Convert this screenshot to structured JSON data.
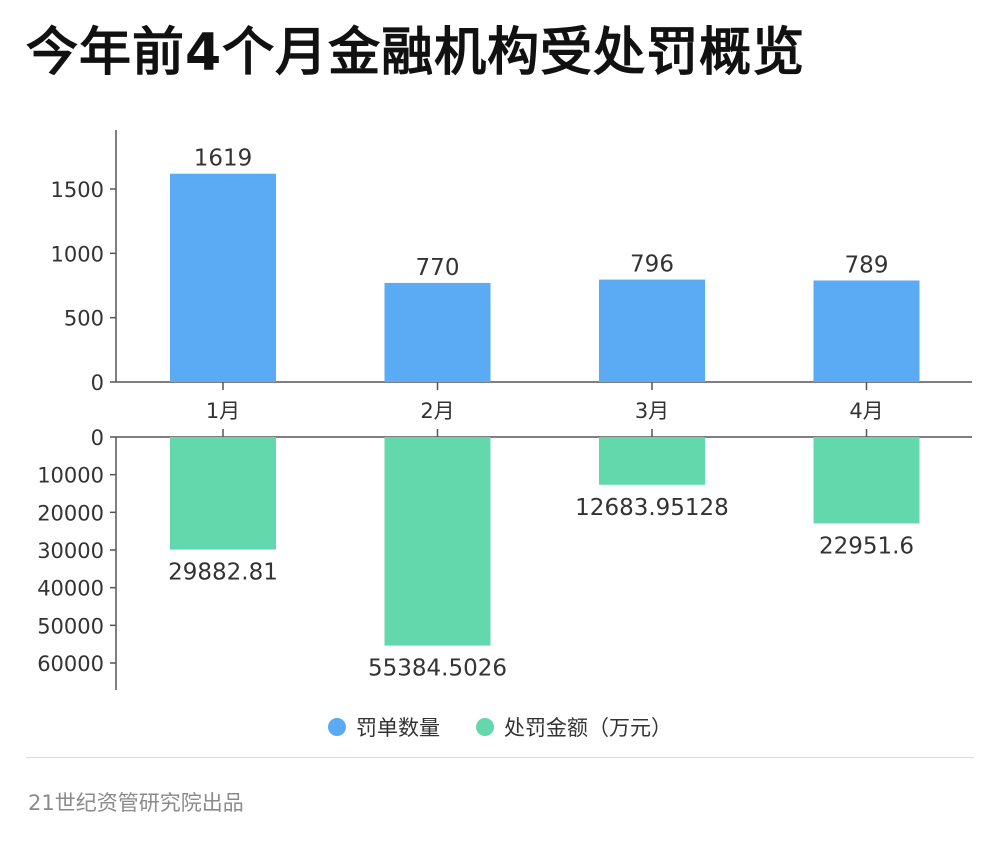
{
  "title": "今年前4个月金融机构受处罚概览",
  "footer": "21世纪资管研究院出品",
  "legend": [
    {
      "label": "罚单数量",
      "color": "#5aabf4"
    },
    {
      "label": "处罚金额（万元）",
      "color": "#62d8ac"
    }
  ],
  "chart_data": {
    "type": "bar",
    "categories": [
      "1月",
      "2月",
      "3月",
      "4月"
    ],
    "series": [
      {
        "name": "罚单数量",
        "values": [
          1619,
          770,
          796,
          789
        ],
        "labels": [
          "1619",
          "770",
          "796",
          "789"
        ],
        "color": "#5aabf4",
        "ylim": [
          0,
          1800
        ],
        "yticks": [
          "0",
          "500",
          "1000",
          "1500"
        ],
        "direction": "up"
      },
      {
        "name": "处罚金额（万元）",
        "values": [
          29882.81,
          55384.5026,
          12683.95128,
          22951.6
        ],
        "labels": [
          "29882.81",
          "55384.5026",
          "12683.95128",
          "22951.6"
        ],
        "color": "#62d8ac",
        "ylim": [
          0,
          66000
        ],
        "yticks": [
          "0",
          "10000",
          "20000",
          "30000",
          "40000",
          "50000",
          "60000"
        ],
        "direction": "down"
      }
    ],
    "grid": false,
    "legend_position": "bottom"
  }
}
